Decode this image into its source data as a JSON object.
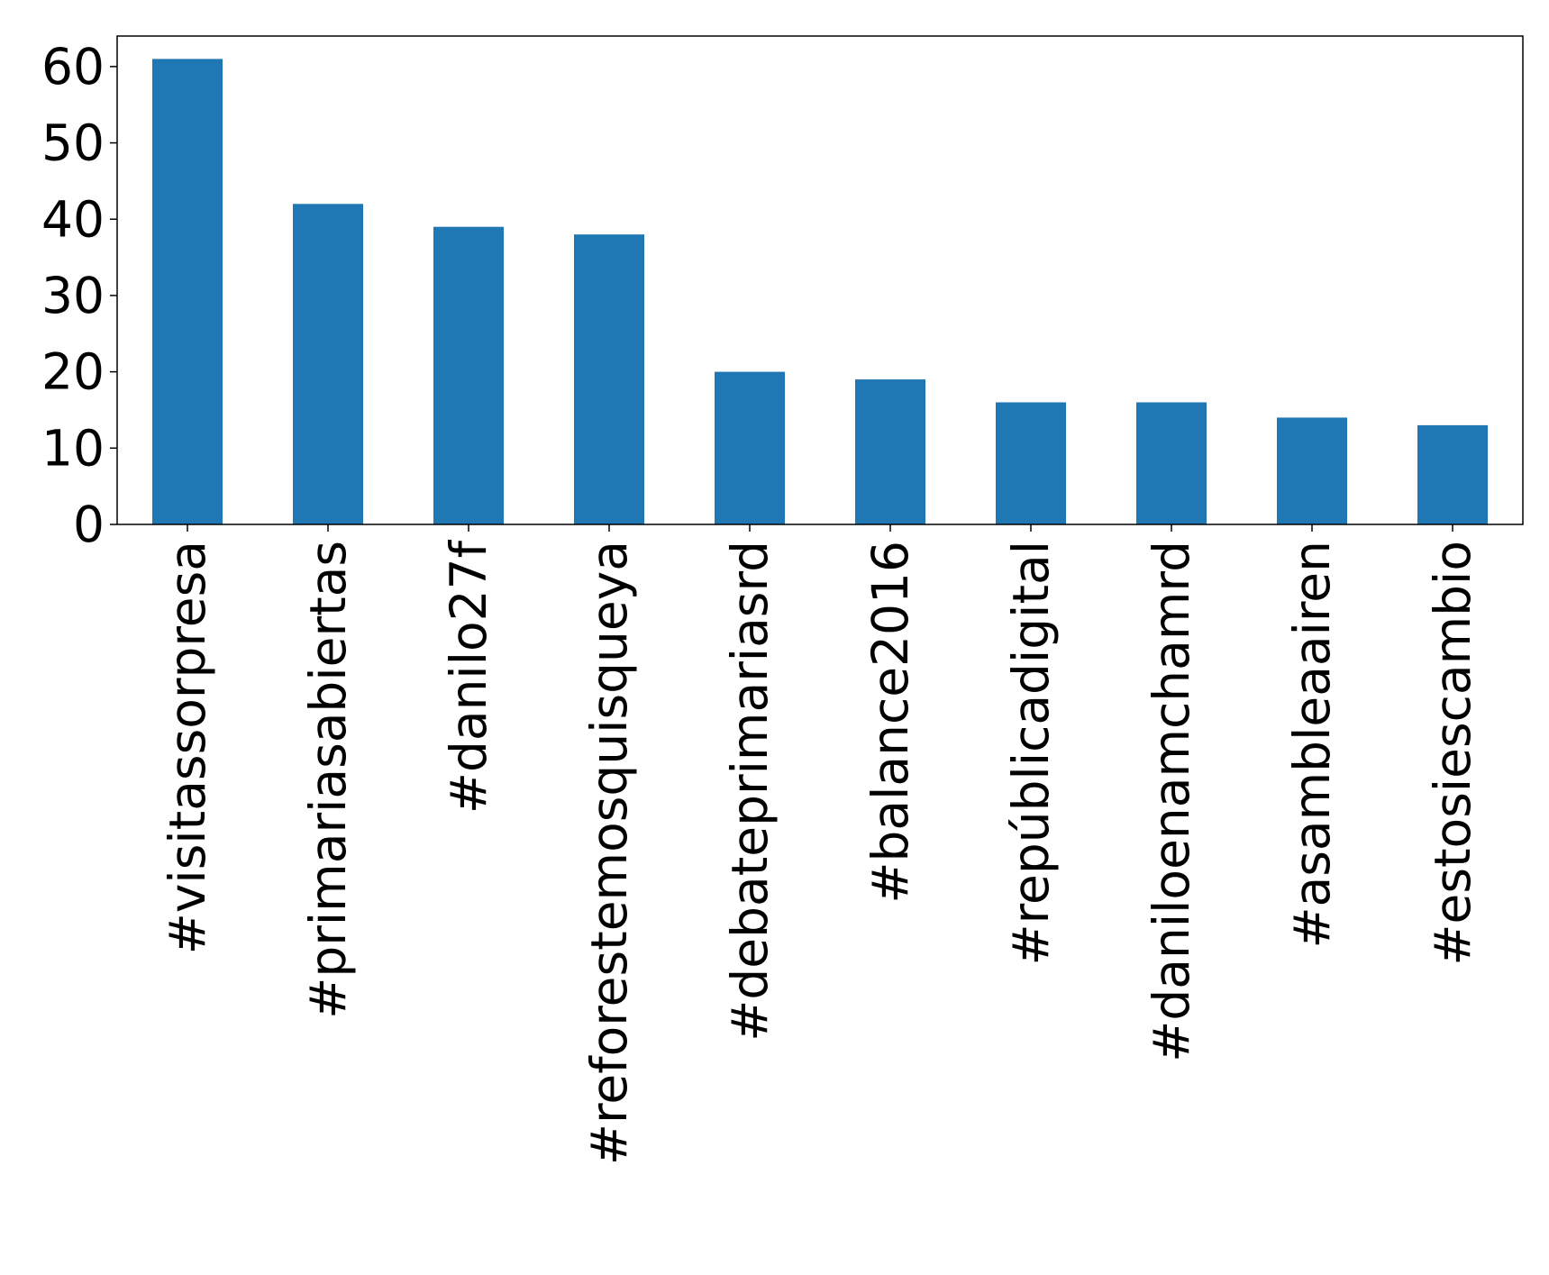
{
  "chart_data": {
    "type": "bar",
    "title": "",
    "xlabel": "",
    "ylabel": "",
    "categories": [
      "#visitassorpresa",
      "#primariasabiertas",
      "#danilo27f",
      "#reforestemosquisqueya",
      "#debateprimariasrd",
      "#balance2016",
      "#repúblicadigital",
      "#daniloenamchamrd",
      "#asambleaairen",
      "#estosiescambio"
    ],
    "values": [
      61,
      42,
      39,
      38,
      20,
      19,
      16,
      16,
      14,
      13
    ],
    "ylim": [
      0,
      64
    ],
    "yticks": [
      0,
      10,
      20,
      30,
      40,
      50,
      60
    ],
    "ytick_labels": [
      "0",
      "10",
      "20",
      "30",
      "40",
      "50",
      "60"
    ],
    "grid": false,
    "legend": "none",
    "bar_color": "#1f77b4"
  }
}
